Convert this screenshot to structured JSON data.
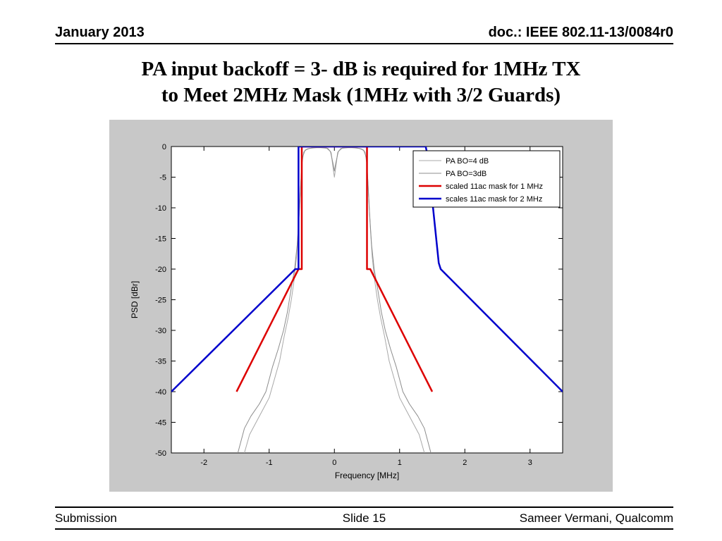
{
  "header": {
    "date": "January 2013",
    "doc": "doc.: IEEE 802.11-13/0084r0"
  },
  "title": {
    "line1": "PA input backoff = 3- dB is required for 1MHz TX",
    "line2": "to Meet 2MHz Mask (1MHz with 3/2 Guards)"
  },
  "footer": {
    "left": "Submission",
    "center": "Slide 15",
    "right": "Sameer Vermani, Qualcomm"
  },
  "chart_data": {
    "type": "line",
    "xlabel": "Frequency [MHz]",
    "ylabel": "PSD [dBr]",
    "xlim": [
      -2.5,
      3.5
    ],
    "ylim": [
      -50,
      0
    ],
    "xticks": [
      -2,
      -1,
      0,
      1,
      2,
      3
    ],
    "yticks": [
      0,
      -5,
      -10,
      -15,
      -20,
      -25,
      -30,
      -35,
      -40,
      -45,
      -50
    ],
    "grid": false,
    "legend_position": "top-right",
    "background": "#c8c8c8",
    "plot_background": "#ffffff",
    "frame_color": "#000000",
    "series": [
      {
        "name": "PA BO=4 dB",
        "color": "#a8a8a8",
        "width": 1,
        "points": [
          [
            -1.38,
            -50
          ],
          [
            -1.3,
            -47
          ],
          [
            -1.2,
            -45
          ],
          [
            -1.1,
            -43
          ],
          [
            -1.0,
            -41
          ],
          [
            -0.92,
            -38
          ],
          [
            -0.84,
            -35
          ],
          [
            -0.77,
            -31
          ],
          [
            -0.71,
            -28
          ],
          [
            -0.66,
            -25
          ],
          [
            -0.62,
            -22
          ],
          [
            -0.58,
            -18
          ],
          [
            -0.55,
            -13
          ],
          [
            -0.52,
            -7
          ],
          [
            -0.5,
            -3
          ],
          [
            -0.47,
            -0.9
          ],
          [
            -0.42,
            -0.4
          ],
          [
            -0.33,
            -0.2
          ],
          [
            -0.2,
            -0.2
          ],
          [
            -0.1,
            -0.3
          ],
          [
            -0.05,
            -1
          ],
          [
            -0.02,
            -3.5
          ],
          [
            0,
            -5
          ],
          [
            0.02,
            -3.5
          ],
          [
            0.05,
            -1
          ],
          [
            0.1,
            -0.3
          ],
          [
            0.2,
            -0.2
          ],
          [
            0.33,
            -0.2
          ],
          [
            0.42,
            -0.4
          ],
          [
            0.47,
            -0.9
          ],
          [
            0.5,
            -3
          ],
          [
            0.52,
            -7
          ],
          [
            0.55,
            -13
          ],
          [
            0.58,
            -18
          ],
          [
            0.62,
            -22
          ],
          [
            0.66,
            -25
          ],
          [
            0.71,
            -28
          ],
          [
            0.77,
            -31
          ],
          [
            0.84,
            -35
          ],
          [
            0.92,
            -38
          ],
          [
            1.0,
            -41
          ],
          [
            1.1,
            -43
          ],
          [
            1.2,
            -45
          ],
          [
            1.3,
            -47
          ],
          [
            1.38,
            -50
          ]
        ]
      },
      {
        "name": "PA BO=3dB",
        "color": "#8c8c8c",
        "width": 1,
        "points": [
          [
            -1.48,
            -50
          ],
          [
            -1.38,
            -46
          ],
          [
            -1.28,
            -44
          ],
          [
            -1.15,
            -42
          ],
          [
            -1.05,
            -40
          ],
          [
            -0.95,
            -36
          ],
          [
            -0.86,
            -33
          ],
          [
            -0.78,
            -30
          ],
          [
            -0.72,
            -27
          ],
          [
            -0.66,
            -23
          ],
          [
            -0.61,
            -20
          ],
          [
            -0.57,
            -16
          ],
          [
            -0.54,
            -11
          ],
          [
            -0.51,
            -5
          ],
          [
            -0.49,
            -1.8
          ],
          [
            -0.45,
            -0.6
          ],
          [
            -0.38,
            -0.3
          ],
          [
            -0.25,
            -0.15
          ],
          [
            -0.12,
            -0.25
          ],
          [
            -0.06,
            -0.8
          ],
          [
            -0.02,
            -2.8
          ],
          [
            0,
            -4
          ],
          [
            0.02,
            -2.8
          ],
          [
            0.06,
            -0.8
          ],
          [
            0.12,
            -0.25
          ],
          [
            0.25,
            -0.15
          ],
          [
            0.38,
            -0.3
          ],
          [
            0.45,
            -0.6
          ],
          [
            0.49,
            -1.8
          ],
          [
            0.51,
            -5
          ],
          [
            0.54,
            -11
          ],
          [
            0.57,
            -16
          ],
          [
            0.61,
            -20
          ],
          [
            0.66,
            -23
          ],
          [
            0.72,
            -27
          ],
          [
            0.78,
            -30
          ],
          [
            0.86,
            -33
          ],
          [
            0.95,
            -36
          ],
          [
            1.05,
            -40
          ],
          [
            1.15,
            -42
          ],
          [
            1.28,
            -44
          ],
          [
            1.38,
            -46
          ],
          [
            1.48,
            -50
          ]
        ]
      },
      {
        "name": "scaled 11ac mask for 1 MHz",
        "color": "#dd0000",
        "width": 2.5,
        "points": [
          [
            -1.5,
            -40
          ],
          [
            -0.55,
            -20
          ],
          [
            -0.5,
            -20
          ],
          [
            -0.5,
            0
          ],
          [
            0.5,
            0
          ],
          [
            0.5,
            -20
          ],
          [
            0.55,
            -20
          ],
          [
            1.5,
            -40
          ]
        ]
      },
      {
        "name": "scales 11ac mask for 2 MHz",
        "color": "#0000cc",
        "width": 2.5,
        "points": [
          [
            -2.5,
            -40
          ],
          [
            -0.6,
            -20
          ],
          [
            -0.55,
            -20
          ],
          [
            -0.55,
            0
          ],
          [
            1.4,
            0
          ],
          [
            1.43,
            -1.5
          ],
          [
            1.6,
            -19
          ],
          [
            1.63,
            -20
          ],
          [
            3.5,
            -40
          ]
        ]
      }
    ]
  }
}
